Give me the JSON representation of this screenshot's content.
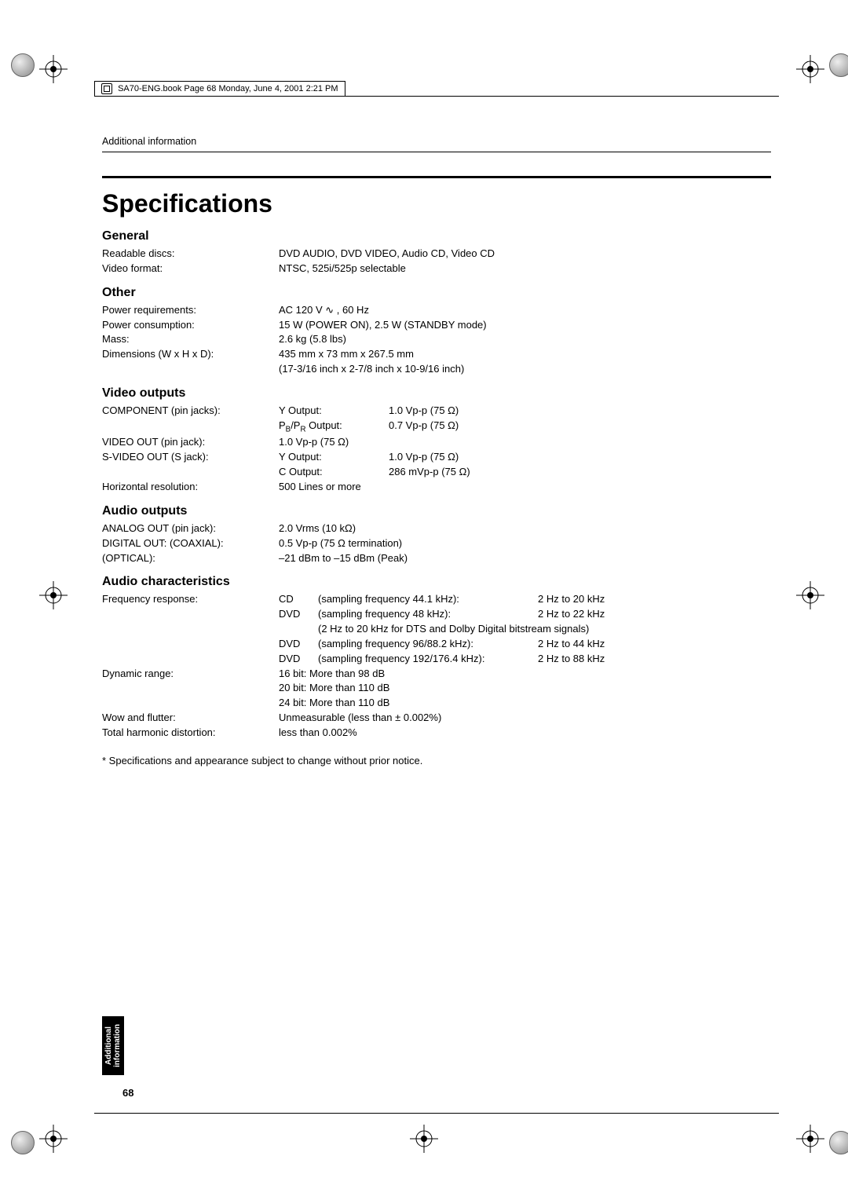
{
  "print_header": "SA70-ENG.book  Page 68  Monday, June 4, 2001  2:21 PM",
  "section_label": "Additional information",
  "title": "Specifications",
  "tab_label": "Additional\ninformation",
  "page_number": "68",
  "footnote": "*   Specifications and appearance subject to change without prior notice.",
  "sections": {
    "general": {
      "heading": "General",
      "rows": [
        {
          "label": "Readable discs:",
          "value": "DVD AUDIO, DVD VIDEO, Audio CD, Video CD"
        },
        {
          "label": "Video format:",
          "value": "NTSC, 525i/525p selectable"
        }
      ]
    },
    "other": {
      "heading": "Other",
      "rows": [
        {
          "label": "Power requirements:",
          "value": "AC 120 V ∿ , 60 Hz"
        },
        {
          "label": "Power consumption:",
          "value": "15 W (POWER ON), 2.5 W (STANDBY mode)"
        },
        {
          "label": "Mass:",
          "value": "2.6 kg (5.8 lbs)"
        },
        {
          "label": "Dimensions (W x H x D):",
          "value": "435 mm x 73 mm x 267.5 mm"
        },
        {
          "label": "",
          "value": "(17-3/16 inch x 2-7/8 inch x 10-9/16 inch)"
        }
      ]
    },
    "video": {
      "heading": "Video outputs",
      "rows": [
        {
          "label": "COMPONENT (pin jacks):",
          "c1": "Y Output:",
          "c2": "1.0 Vp-p (75 Ω)"
        },
        {
          "label": "",
          "c1": "P_B/P_R Output:",
          "c2": "0.7 Vp-p (75 Ω)"
        },
        {
          "label": "VIDEO OUT (pin jack):",
          "c1": "1.0 Vp-p (75 Ω)",
          "c2": ""
        },
        {
          "label": "S-VIDEO OUT (S jack):",
          "c1": "Y Output:",
          "c2": "1.0 Vp-p (75 Ω)"
        },
        {
          "label": "",
          "c1": "C Output:",
          "c2": "286 mVp-p (75 Ω)"
        },
        {
          "label": "Horizontal resolution:",
          "c1": "500 Lines or more",
          "c2": ""
        }
      ]
    },
    "audio_out": {
      "heading": "Audio outputs",
      "rows": [
        {
          "label": "ANALOG OUT (pin jack):",
          "value": "2.0 Vrms (10 kΩ)"
        },
        {
          "label": "DIGITAL OUT:  (COAXIAL):",
          "value": "0.5 Vp-p (75 Ω termination)"
        },
        {
          "label": "                       (OPTICAL):",
          "value": "–21 dBm to –15 dBm (Peak)"
        }
      ]
    },
    "audio_char": {
      "heading": "Audio characteristics",
      "freq_rows": [
        {
          "label": "Frequency response:",
          "c2": "CD",
          "c3": "(sampling frequency 44.1 kHz):",
          "c4": "2 Hz to 20 kHz"
        },
        {
          "label": "",
          "c2": "DVD",
          "c3": "(sampling frequency 48 kHz):",
          "c4": "2 Hz to 22 kHz"
        },
        {
          "label": "",
          "c2": "",
          "c3": "(2 Hz to 20 kHz for DTS and Dolby Digital bitstream signals)",
          "c4": ""
        },
        {
          "label": "",
          "c2": "DVD",
          "c3": "(sampling frequency 96/88.2 kHz):",
          "c4": "2 Hz to 44 kHz"
        },
        {
          "label": "",
          "c2": "DVD",
          "c3": "(sampling frequency 192/176.4 kHz):",
          "c4": "2 Hz to 88 kHz"
        }
      ],
      "dyn_rows": [
        {
          "label": "Dynamic range:",
          "value": "16 bit: More than 98 dB"
        },
        {
          "label": "",
          "value": "20 bit: More than 110 dB"
        },
        {
          "label": "",
          "value": "24 bit: More than 110 dB"
        }
      ],
      "tail_rows": [
        {
          "label": "Wow and flutter:",
          "value": "Unmeasurable (less than ± 0.002%)"
        },
        {
          "label": "Total harmonic distortion:",
          "value": "less than 0.002%"
        }
      ]
    }
  },
  "colors": {
    "text": "#000000",
    "bg": "#ffffff",
    "rule": "#000000"
  }
}
